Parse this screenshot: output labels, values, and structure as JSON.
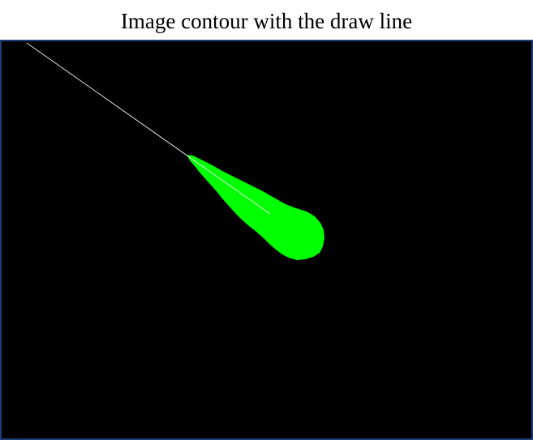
{
  "figure": {
    "title": "Image contour with the draw line"
  },
  "colors": {
    "background": "#000000",
    "contour_fill": "#00ff00",
    "draw_line": "#e6e6e6",
    "frame_border": "#1c3f7a",
    "title_text": "#000000"
  }
}
